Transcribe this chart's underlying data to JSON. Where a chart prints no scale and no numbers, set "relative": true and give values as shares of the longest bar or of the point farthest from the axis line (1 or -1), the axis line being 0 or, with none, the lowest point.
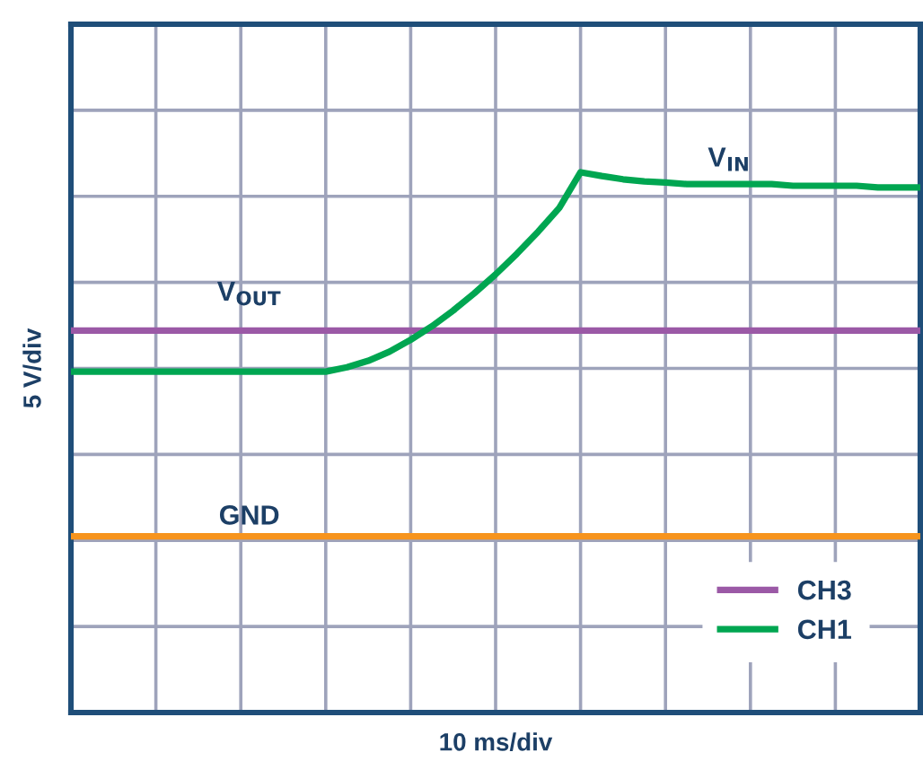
{
  "chart_data": {
    "type": "line",
    "relative": true,
    "xlabel": "10 ms/div",
    "ylabel": "5 V/div",
    "categories": [
      null,
      null,
      null,
      null,
      null,
      null,
      null,
      null,
      null,
      null,
      null,
      null,
      null,
      null,
      null,
      null,
      null,
      null,
      null,
      null,
      null,
      null,
      null,
      null,
      null,
      null,
      null,
      null,
      null,
      null,
      null,
      null,
      null,
      null,
      null,
      null,
      null,
      null,
      null,
      null,
      null
    ],
    "series": [
      {
        "name": "CH3",
        "color": "#9b59a6",
        "values": [
          0.707,
          0.707,
          0.707,
          0.707,
          0.707,
          0.707,
          0.707,
          0.707,
          0.707,
          0.707,
          0.707,
          0.707,
          0.707,
          0.707,
          0.707,
          0.707,
          0.707,
          0.707,
          0.707,
          0.707,
          0.707,
          0.707,
          0.707,
          0.707,
          0.707,
          0.707,
          0.707,
          0.707,
          0.707,
          0.707,
          0.707,
          0.707,
          0.707,
          0.707,
          0.707,
          0.707,
          0.707,
          0.707,
          0.707,
          0.707,
          0.707
        ]
      },
      {
        "name": "CH1",
        "color": "#00a651",
        "values": [
          0.631,
          0.631,
          0.631,
          0.631,
          0.631,
          0.631,
          0.631,
          0.631,
          0.631,
          0.631,
          0.631,
          0.631,
          0.631,
          0.639,
          0.651,
          0.668,
          0.69,
          0.715,
          0.744,
          0.776,
          0.811,
          0.849,
          0.89,
          0.934,
          1.0,
          0.993,
          0.987,
          0.983,
          0.981,
          0.978,
          0.978,
          0.978,
          0.978,
          0.978,
          0.975,
          0.975,
          0.975,
          0.975,
          0.972,
          0.972,
          0.972
        ]
      },
      {
        "color": "#f7941d",
        "values": [
          0.326,
          0.326,
          0.326,
          0.326,
          0.326,
          0.326,
          0.326,
          0.326,
          0.326,
          0.326,
          0.326,
          0.326,
          0.326,
          0.326,
          0.326,
          0.326,
          0.326,
          0.326,
          0.326,
          0.326,
          0.326,
          0.326,
          0.326,
          0.326,
          0.326,
          0.326,
          0.326,
          0.326,
          0.326,
          0.326,
          0.326,
          0.326,
          0.326,
          0.326,
          0.326,
          0.326,
          0.326,
          0.326,
          0.326,
          0.326,
          0.326
        ]
      }
    ],
    "annotations": [
      "V$_{OUT}$",
      "V$_{IN}$",
      "GND"
    ],
    "grid": true,
    "legend": "bottom right",
    "marker": "none",
    "line_style": "solid"
  }
}
